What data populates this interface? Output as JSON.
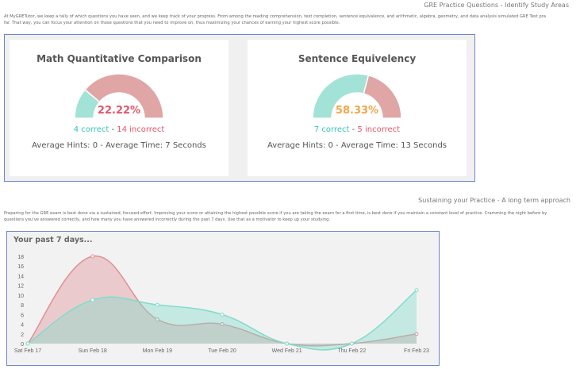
{
  "section1": {
    "heading": "GRE Practice Questions - Identify Study Areas",
    "para": [
      "At MyGRETutor, we keep a tally of which questions you have seen, and we keep track of your progress. From among the reading comprehension, text completion, sentence equivalence, and arithmetic, algebra, geometry, and data analysis simulated GRE Test pra",
      "far. That way, you can focus your attention on those questions that you need to improve on, thus maximizing your chances of earning your highest score possible."
    ]
  },
  "cards": [
    {
      "title": "Math Quantitative Comparison",
      "percent": "22.22%",
      "fraction": 0.2222,
      "percent_color": "#e4566a",
      "correct": "4 correct",
      "sep": " - ",
      "incorrect": "14 incorrect",
      "avg": "Average Hints: 0 - Average Time: 7 Seconds"
    },
    {
      "title": "Sentence Equivelency",
      "percent": "58.33%",
      "fraction": 0.5833,
      "percent_color": "#f5a54a",
      "correct": "7 correct",
      "sep": " - ",
      "incorrect": "5 incorrect",
      "avg": "Average Hints: 0 - Average Time: 13 Seconds"
    }
  ],
  "colors": {
    "correct": "#a3e2d6",
    "incorrect": "#e0a5a5"
  },
  "section2": {
    "heading": "Sustaining your Practice - A long term approach",
    "para": [
      "Preparing for the GRE exam is best done via a sustained, focused effort. Improving your score or attaining the highest possible score if you are taking the exam for a first time, is best done if you maintain a constant level of practice. Cramming the night before by",
      "questions you've answered correctly, and how many you have answered incorrectly during the past 7 days. Use that as a motivator to keep up your studying."
    ]
  },
  "chart_data": {
    "type": "area",
    "title": "Your past 7 days...",
    "categories": [
      "Sat Feb 17",
      "Sun Feb 18",
      "Mon Feb 19",
      "Tue Feb 20",
      "Wed Feb 21",
      "Thu Feb 22",
      "Fri Feb 23"
    ],
    "series": [
      {
        "name": "incorrect",
        "color": "#e08f96",
        "values": [
          0,
          18,
          5,
          4,
          0,
          0,
          2
        ]
      },
      {
        "name": "correct",
        "color": "#7fdccb",
        "values": [
          0,
          9,
          8,
          6,
          0,
          0,
          11
        ]
      }
    ],
    "yticks": [
      0,
      2,
      4,
      6,
      8,
      10,
      12,
      14,
      16,
      18
    ],
    "ylim": [
      0,
      18
    ]
  }
}
